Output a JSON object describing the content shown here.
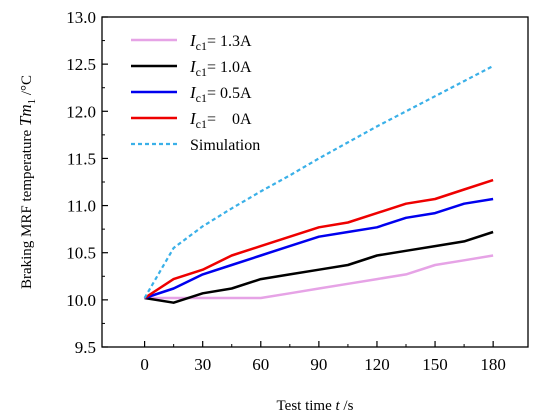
{
  "chart_data": {
    "type": "line",
    "title": "",
    "xlabel": "Test time t /s",
    "xlabel_text": "Test time ",
    "xlabel_var": "t",
    "xlabel_unit": " /s",
    "ylabel": "Braking MRF temperature Tm1 /°C",
    "ylabel_text": "Braking MRF temperature ",
    "ylabel_var": "Tm",
    "ylabel_sub": "1",
    "ylabel_unit": " /°C",
    "xlim": [
      -22,
      198
    ],
    "ylim": [
      9.5,
      13.0
    ],
    "xticks": [
      "0",
      "30",
      "60",
      "90",
      "120",
      "150",
      "180"
    ],
    "yticks": [
      "9.5",
      "10.0",
      "10.5",
      "11.0",
      "11.5",
      "12.0",
      "12.5",
      "13.0"
    ],
    "xtick_values": [
      0,
      30,
      60,
      90,
      120,
      150,
      180
    ],
    "ytick_values": [
      9.5,
      10.0,
      10.5,
      11.0,
      11.5,
      12.0,
      12.5,
      13.0
    ],
    "grid": false,
    "legend_position": "top-left",
    "series": [
      {
        "legend_var": "I",
        "legend_sub": "c1",
        "legend_value": "= 1.3A",
        "color": "#e6a3e6",
        "dash": "solid",
        "x": [
          0,
          15,
          30,
          45,
          60,
          75,
          90,
          105,
          120,
          135,
          150,
          165,
          180
        ],
        "y": [
          10.02,
          10.02,
          10.02,
          10.02,
          10.02,
          10.07,
          10.12,
          10.17,
          10.22,
          10.27,
          10.37,
          10.42,
          10.47
        ]
      },
      {
        "legend_var": "I",
        "legend_sub": "c1",
        "legend_value": "= 1.0A",
        "color": "#000000",
        "dash": "solid",
        "x": [
          0,
          15,
          30,
          45,
          60,
          75,
          90,
          105,
          120,
          135,
          150,
          165,
          180
        ],
        "y": [
          10.02,
          9.97,
          10.07,
          10.12,
          10.22,
          10.27,
          10.32,
          10.37,
          10.47,
          10.52,
          10.57,
          10.62,
          10.72
        ]
      },
      {
        "legend_var": "I",
        "legend_sub": "c1",
        "legend_value": "= 0.5A",
        "color": "#0000ee",
        "dash": "solid",
        "x": [
          0,
          15,
          30,
          45,
          60,
          75,
          90,
          105,
          120,
          135,
          150,
          165,
          180
        ],
        "y": [
          10.02,
          10.12,
          10.27,
          10.37,
          10.47,
          10.57,
          10.67,
          10.72,
          10.77,
          10.87,
          10.92,
          11.02,
          11.07
        ]
      },
      {
        "legend_var": "I",
        "legend_sub": "c1",
        "legend_value": "=    0A",
        "color": "#ee0000",
        "dash": "solid",
        "x": [
          0,
          15,
          30,
          45,
          60,
          75,
          90,
          105,
          120,
          135,
          150,
          165,
          180
        ],
        "y": [
          10.02,
          10.22,
          10.32,
          10.47,
          10.57,
          10.67,
          10.77,
          10.82,
          10.92,
          11.02,
          11.07,
          11.17,
          11.27
        ]
      },
      {
        "name": "Simulation",
        "color": "#3ab0e8",
        "dash": "dashed",
        "x": [
          0,
          15,
          30,
          45,
          60,
          75,
          90,
          105,
          120,
          135,
          150,
          165,
          180
        ],
        "y": [
          10.02,
          10.55,
          10.78,
          10.97,
          11.15,
          11.32,
          11.5,
          11.67,
          11.84,
          12.0,
          12.16,
          12.32,
          12.48
        ]
      }
    ]
  }
}
